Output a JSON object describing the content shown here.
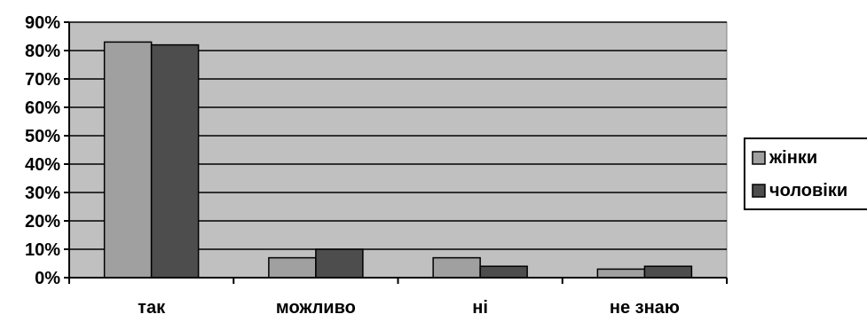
{
  "chart_data": {
    "type": "bar",
    "categories": [
      "так",
      "можливо",
      "ні",
      "не знаю"
    ],
    "series": [
      {
        "name": "жінки",
        "values": [
          83,
          7,
          7,
          3
        ],
        "color": "#a0a0a0"
      },
      {
        "name": "чоловіки",
        "values": [
          82,
          10,
          4,
          4
        ],
        "color": "#4d4d4d"
      }
    ],
    "ylim": [
      0,
      90
    ],
    "yticks": [
      "0%",
      "10%",
      "20%",
      "30%",
      "40%",
      "50%",
      "60%",
      "70%",
      "80%",
      "90%"
    ],
    "grid": true,
    "plot_background": "#c0c0c0",
    "legend_position": "right"
  }
}
